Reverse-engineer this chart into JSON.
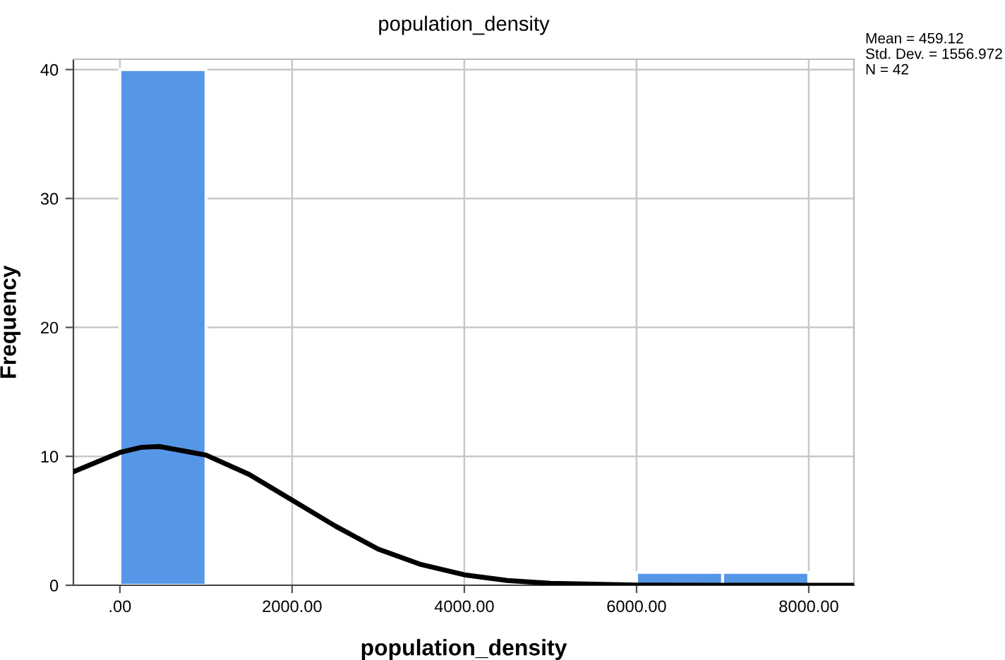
{
  "chart_data": {
    "type": "histogram",
    "title": "population_density",
    "xlabel": "population_density",
    "ylabel": "Frequency",
    "bins": [
      0,
      1000,
      2000,
      3000,
      4000,
      5000,
      6000,
      7000,
      8000
    ],
    "values": [
      40,
      0,
      0,
      0,
      0,
      0,
      1,
      1
    ],
    "color": "#5596e6",
    "series": [
      {
        "type": "line",
        "color": "#000000",
        "x": [
          -540,
          0,
          250,
          459,
          1000,
          1500,
          2000,
          2500,
          3000,
          3500,
          4000,
          4500,
          5000,
          6000,
          7000,
          8500
        ],
        "values": [
          8.8,
          10.3,
          10.7,
          10.76,
          10.1,
          8.6,
          6.6,
          4.6,
          2.8,
          1.6,
          0.81,
          0.37,
          0.15,
          0.02,
          0,
          0
        ]
      }
    ],
    "xlim": [
      -540,
      8525
    ],
    "ylim": [
      0,
      40.8
    ],
    "xticks": [
      {
        "value": 0,
        "label": ".00"
      },
      {
        "value": 2000,
        "label": "2000.00"
      },
      {
        "value": 4000,
        "label": "4000.00"
      },
      {
        "value": 6000,
        "label": "6000.00"
      },
      {
        "value": 8000,
        "label": "8000.00"
      }
    ],
    "yticks": [
      0,
      10,
      20,
      30,
      40
    ],
    "grid": true,
    "marker": "none",
    "line_style": "solid",
    "annotations": [
      "Mean = 459.12",
      "Std. Dev. = 1556.972",
      "N = 42"
    ]
  }
}
